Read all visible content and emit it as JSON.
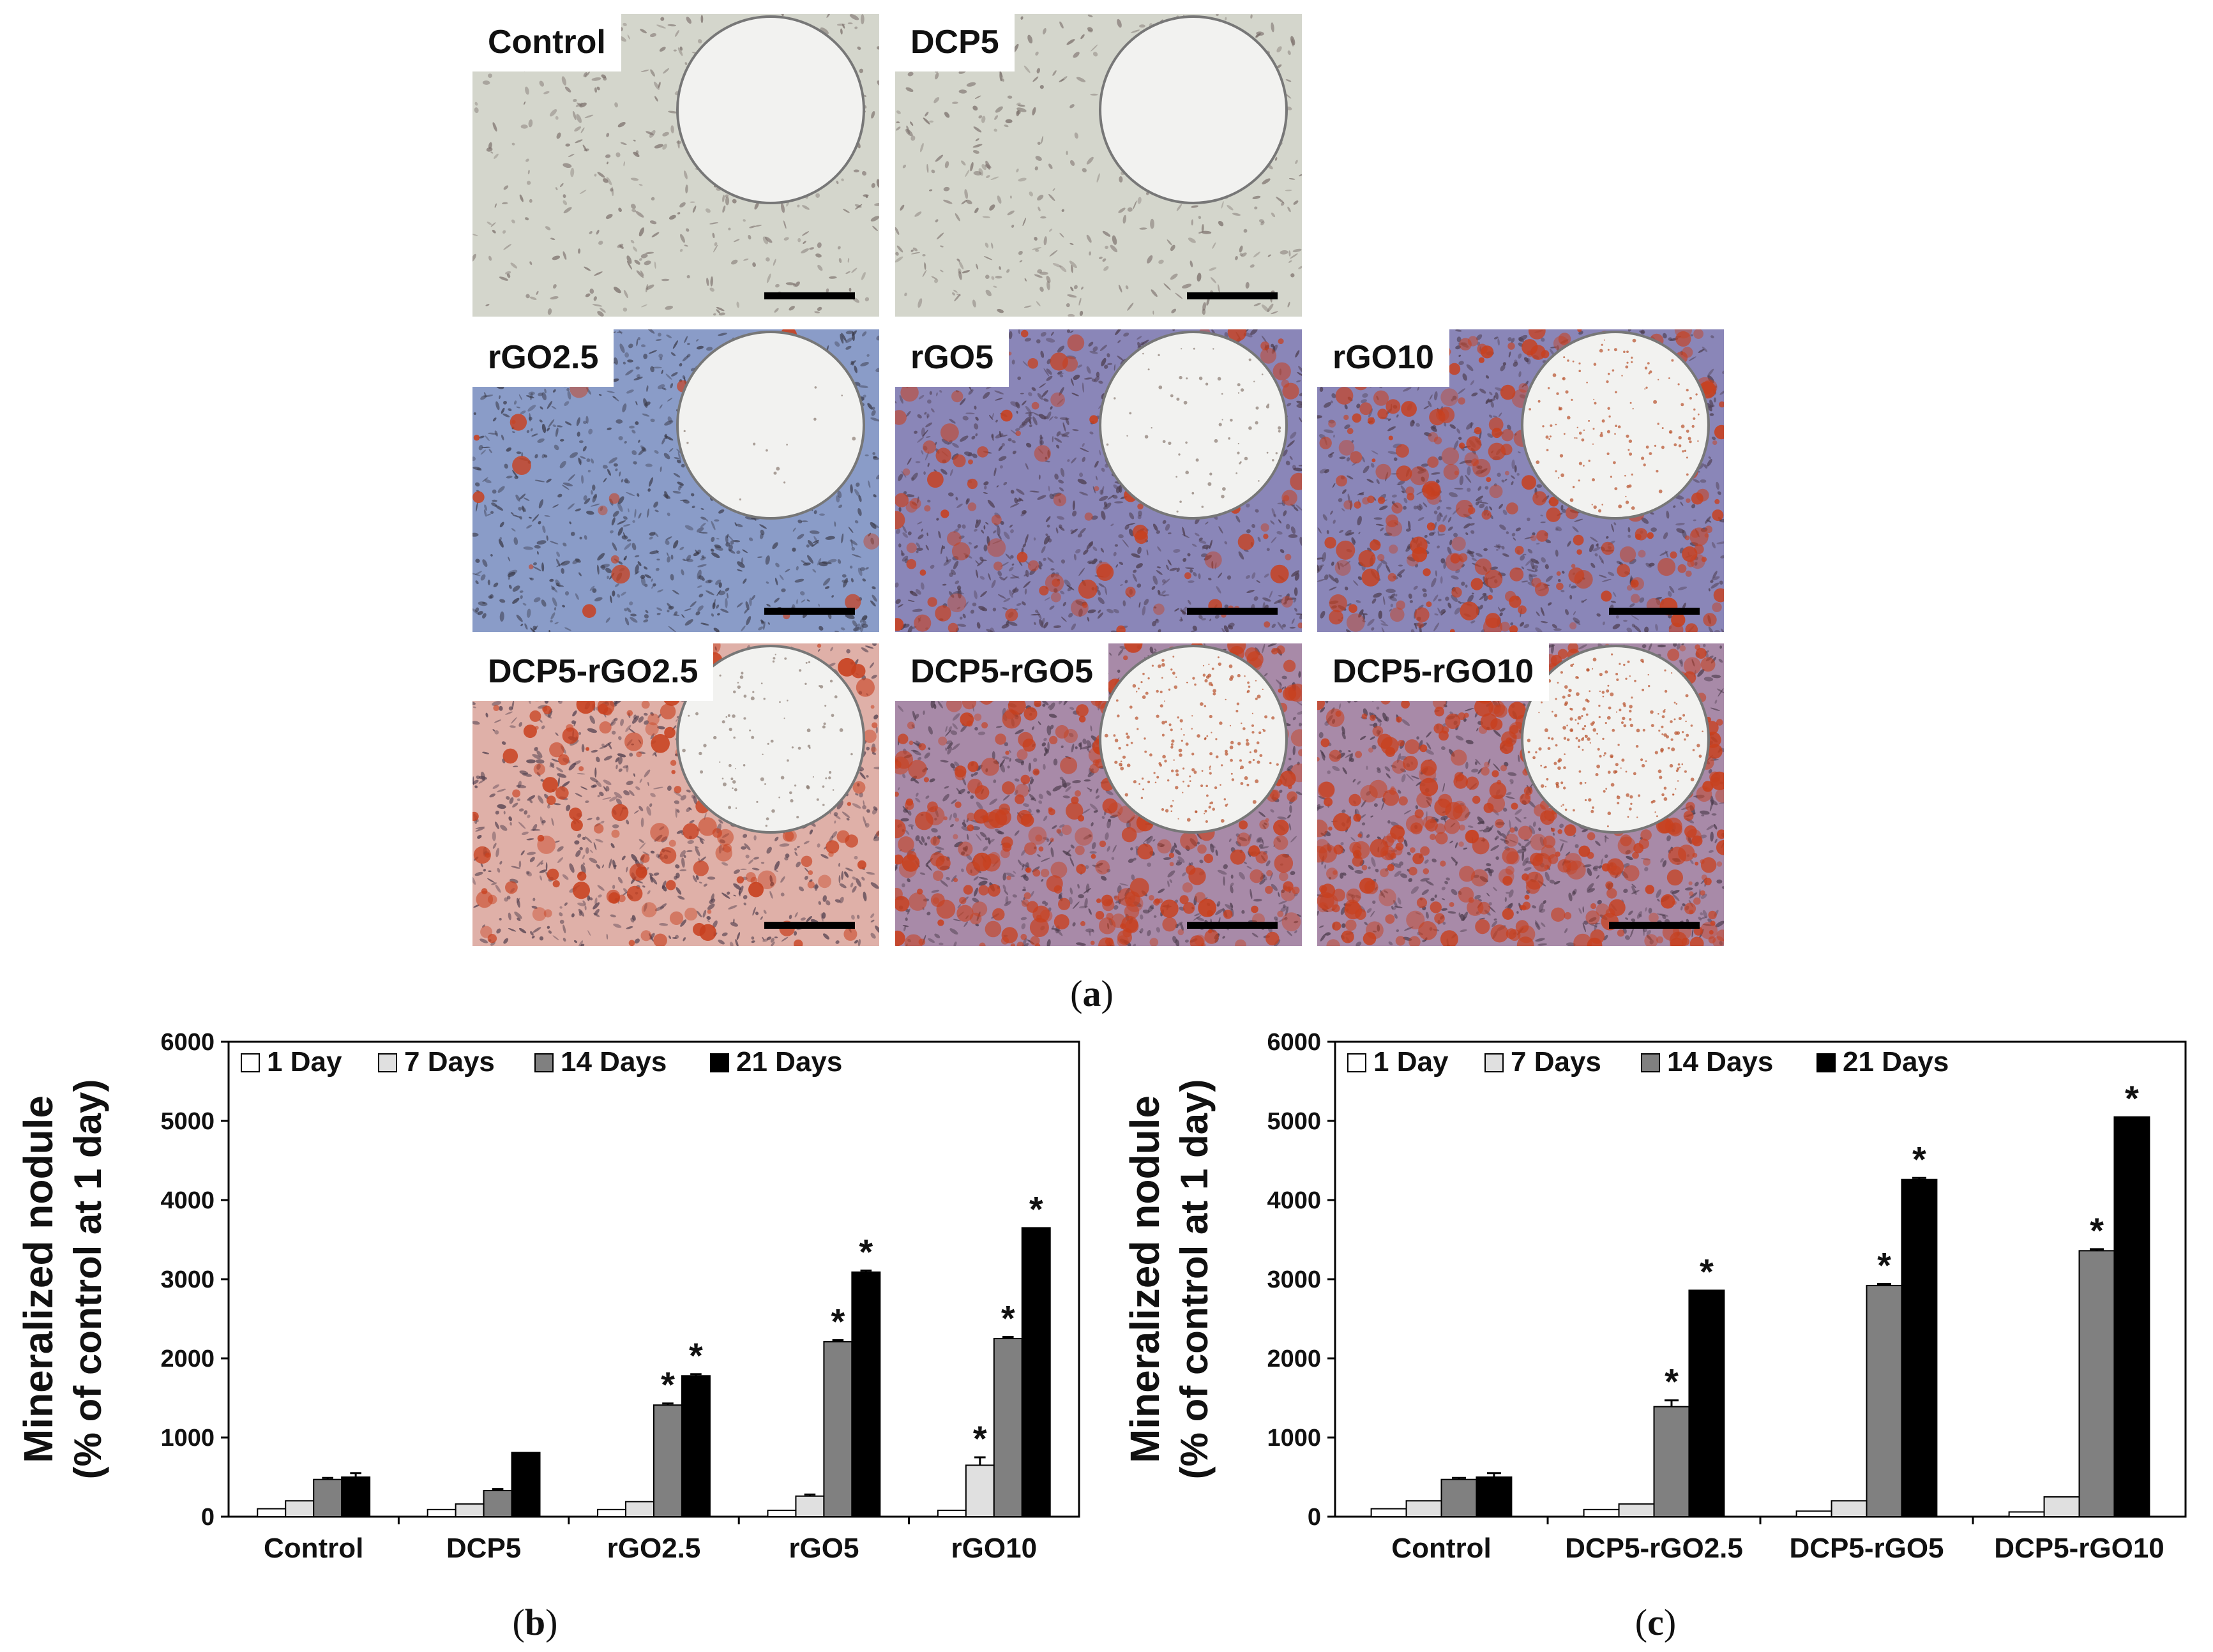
{
  "figure": {
    "panel_captions": [
      {
        "paren_open": "(",
        "letter": "a",
        "paren_close": ")"
      },
      {
        "paren_open": "(",
        "letter": "b",
        "paren_close": ")"
      },
      {
        "paren_open": "(",
        "letter": "c",
        "paren_close": ")"
      }
    ]
  },
  "micrographs": [
    {
      "label": "Control",
      "theme": "gray",
      "stain_level": 0.0
    },
    {
      "label": "DCP5",
      "theme": "gray",
      "stain_level": 0.0
    },
    {
      "label": "rGO2.5",
      "theme": "blue",
      "stain_level": 0.05
    },
    {
      "label": "rGO5",
      "theme": "violet",
      "stain_level": 0.25
    },
    {
      "label": "rGO10",
      "theme": "violet",
      "stain_level": 0.55
    },
    {
      "label": "DCP5-rGO2.5",
      "theme": "pink",
      "stain_level": 0.35
    },
    {
      "label": "DCP5-rGO5",
      "theme": "red",
      "stain_level": 0.8
    },
    {
      "label": "DCP5-rGO10",
      "theme": "red",
      "stain_level": 0.9
    }
  ],
  "colors": {
    "series": [
      "#ffffff",
      "#e0e0e0",
      "#808080",
      "#000000"
    ],
    "gray_bg": "#d4d6cc",
    "blue_bg": "#8a9cc8",
    "violet_bg": "#8a86b8",
    "pink_bg": "#dfb0a8",
    "red_bg": "#a88aa8",
    "stain": "#c8401e"
  },
  "chart_data": [
    {
      "type": "bar",
      "ylabel_line1": "Mineralized nodule",
      "ylabel_line2": "(% of control at 1 day)",
      "ylim": [
        0,
        6000
      ],
      "yticks": [
        "0",
        "1000",
        "2000",
        "3000",
        "4000",
        "5000",
        "6000"
      ],
      "categories": [
        "Control",
        "DCP5",
        "rGO2.5",
        "rGO5",
        "rGO10"
      ],
      "legend": "top-left",
      "series": [
        {
          "name": "1 Day",
          "values": [
            100,
            90,
            90,
            80,
            80
          ],
          "errors": [
            0,
            0,
            0,
            0,
            0
          ]
        },
        {
          "name": "7 Days",
          "values": [
            200,
            160,
            190,
            260,
            650
          ],
          "errors": [
            0,
            0,
            0,
            20,
            100
          ]
        },
        {
          "name": "14 Days",
          "values": [
            470,
            330,
            1410,
            2210,
            2250
          ],
          "errors": [
            20,
            20,
            20,
            20,
            20
          ]
        },
        {
          "name": "21 Days",
          "values": [
            500,
            810,
            1780,
            3090,
            3650
          ],
          "errors": [
            50,
            0,
            20,
            20,
            0
          ]
        }
      ],
      "asterisks": [
        [
          false,
          false,
          false,
          false,
          false
        ],
        [
          false,
          false,
          false,
          false,
          true
        ],
        [
          false,
          false,
          true,
          true,
          true
        ],
        [
          false,
          false,
          true,
          true,
          true
        ]
      ],
      "asterisk_symbol": "*"
    },
    {
      "type": "bar",
      "ylabel_line1": "Mineralized nodule",
      "ylabel_line2": "(% of control at 1 day)",
      "ylim": [
        0,
        6000
      ],
      "yticks": [
        "0",
        "1000",
        "2000",
        "3000",
        "4000",
        "5000",
        "6000"
      ],
      "categories": [
        "Control",
        "DCP5-rGO2.5",
        "DCP5-rGO5",
        "DCP5-rGO10"
      ],
      "legend": "top-left",
      "series": [
        {
          "name": "1 Day",
          "values": [
            100,
            90,
            70,
            60
          ],
          "errors": [
            0,
            0,
            0,
            0
          ]
        },
        {
          "name": "7 Days",
          "values": [
            200,
            160,
            200,
            250
          ],
          "errors": [
            0,
            0,
            0,
            0
          ]
        },
        {
          "name": "14 Days",
          "values": [
            470,
            1390,
            2920,
            3360
          ],
          "errors": [
            20,
            80,
            20,
            20
          ]
        },
        {
          "name": "21 Days",
          "values": [
            500,
            2860,
            4260,
            5050
          ],
          "errors": [
            50,
            0,
            20,
            0
          ]
        }
      ],
      "asterisks": [
        [
          false,
          false,
          false,
          false
        ],
        [
          false,
          false,
          false,
          false
        ],
        [
          false,
          true,
          true,
          true
        ],
        [
          false,
          true,
          true,
          true
        ]
      ],
      "asterisk_symbol": "*"
    }
  ]
}
